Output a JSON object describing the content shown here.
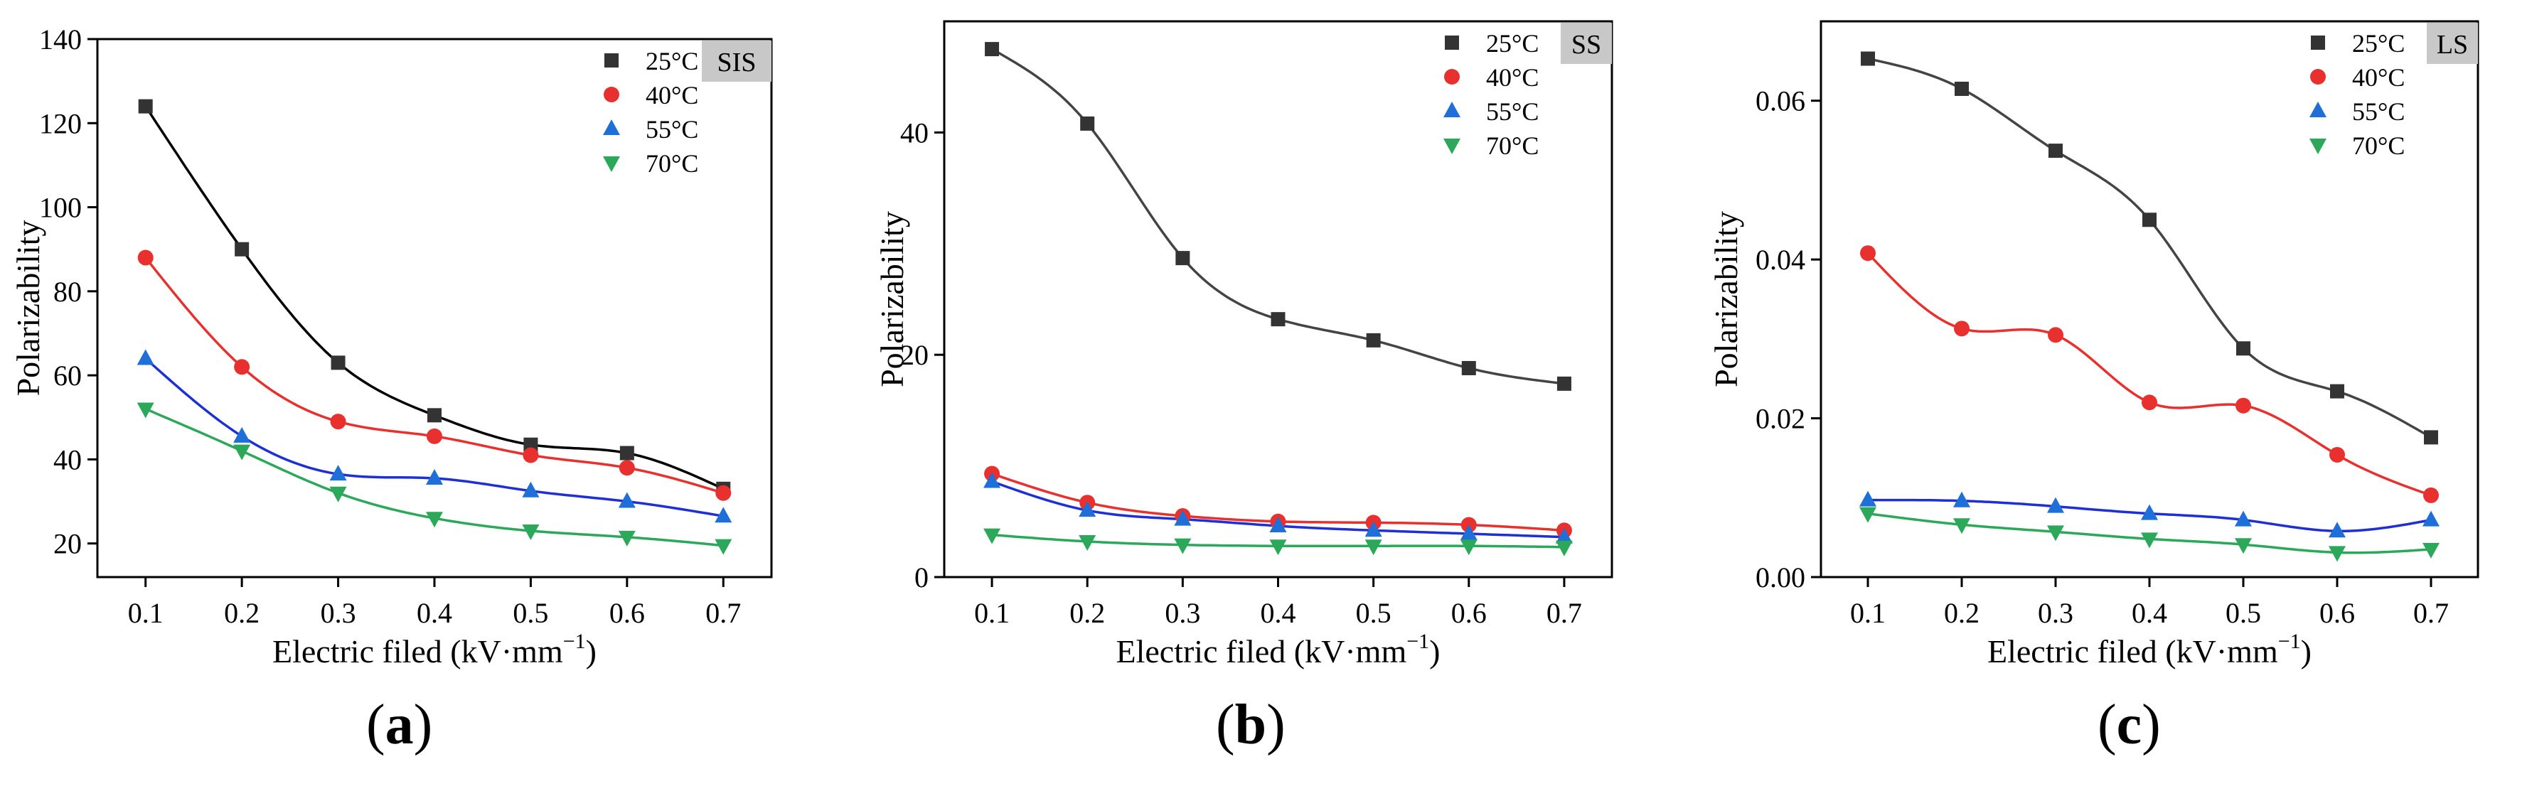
{
  "chart_data": [
    {
      "type": "scatter",
      "panel_label": "a",
      "tag": "SIS",
      "xlabel": "Electric filed (kV·mm",
      "xlabel_sup": "−1",
      "xlabel_close": ")",
      "ylabel": "Polarizability",
      "xlim": [
        0.05,
        0.75
      ],
      "ylim": [
        12,
        140
      ],
      "xticks": [
        0.1,
        0.2,
        0.3,
        0.4,
        0.5,
        0.6,
        0.7
      ],
      "xtick_labels": [
        "0.1",
        "0.2",
        "0.3",
        "0.4",
        "0.5",
        "0.6",
        "0.7"
      ],
      "yticks": [
        20,
        40,
        60,
        80,
        100,
        120,
        140
      ],
      "ytick_labels": [
        "20",
        "40",
        "60",
        "80",
        "100",
        "120",
        "140"
      ],
      "legend_position": "top-right",
      "x": [
        0.1,
        0.2,
        0.3,
        0.4,
        0.5,
        0.6,
        0.7
      ],
      "series": [
        {
          "name": "25°C",
          "color": "#333333",
          "line_color": "#000000",
          "marker": "square",
          "values": [
            124,
            90,
            63,
            50.5,
            43.5,
            41.5,
            33
          ]
        },
        {
          "name": "40°C",
          "color": "#e8312f",
          "line_color": "#e8312f",
          "marker": "circle",
          "values": [
            88,
            62,
            49,
            45.5,
            41,
            38,
            32
          ]
        },
        {
          "name": "55°C",
          "color": "#1f6fd8",
          "line_color": "#1f2fd8",
          "marker": "triangle-up",
          "values": [
            64,
            45.5,
            36.5,
            35.5,
            32.5,
            30,
            26.5
          ]
        },
        {
          "name": "70°C",
          "color": "#2ca85a",
          "line_color": "#2ca85a",
          "marker": "triangle-down",
          "values": [
            52,
            42,
            32,
            26,
            23,
            21.5,
            19.5
          ]
        }
      ]
    },
    {
      "type": "scatter",
      "panel_label": "b",
      "tag": "SS",
      "xlabel": "Electric filed (kV·mm",
      "xlabel_sup": "−1",
      "xlabel_close": ")",
      "ylabel": "Polarizability",
      "xlim": [
        0.05,
        0.75
      ],
      "ylim": [
        0,
        50
      ],
      "xticks": [
        0.1,
        0.2,
        0.3,
        0.4,
        0.5,
        0.6,
        0.7
      ],
      "xtick_labels": [
        "0.1",
        "0.2",
        "0.3",
        "0.4",
        "0.5",
        "0.6",
        "0.7"
      ],
      "yticks": [
        0,
        20,
        40
      ],
      "ytick_labels": [
        "0",
        "20",
        "40"
      ],
      "legend_position": "top-right",
      "x": [
        0.1,
        0.2,
        0.3,
        0.4,
        0.5,
        0.6,
        0.7
      ],
      "series": [
        {
          "name": "25°C",
          "color": "#333333",
          "line_color": "#444444",
          "marker": "square",
          "values": [
            47.5,
            40.8,
            28.7,
            23.2,
            21.3,
            18.8,
            17.4
          ]
        },
        {
          "name": "40°C",
          "color": "#e8312f",
          "line_color": "#e8312f",
          "marker": "circle",
          "values": [
            9.3,
            6.7,
            5.5,
            5.0,
            4.9,
            4.7,
            4.2
          ]
        },
        {
          "name": "55°C",
          "color": "#1f6fd8",
          "line_color": "#1f2fd8",
          "marker": "triangle-up",
          "values": [
            8.6,
            6.0,
            5.2,
            4.6,
            4.2,
            3.9,
            3.6
          ]
        },
        {
          "name": "70°C",
          "color": "#2ca85a",
          "line_color": "#2ca85a",
          "marker": "triangle-down",
          "values": [
            3.8,
            3.2,
            2.9,
            2.8,
            2.8,
            2.8,
            2.7
          ]
        }
      ]
    },
    {
      "type": "scatter",
      "panel_label": "c",
      "tag": "LS",
      "xlabel": "Electric filed (kV·mm",
      "xlabel_sup": "−1",
      "xlabel_close": ")",
      "ylabel": "Polarizability",
      "xlim": [
        0.05,
        0.75
      ],
      "ylim": [
        0,
        0.07
      ],
      "xticks": [
        0.1,
        0.2,
        0.3,
        0.4,
        0.5,
        0.6,
        0.7
      ],
      "xtick_labels": [
        "0.1",
        "0.2",
        "0.3",
        "0.4",
        "0.5",
        "0.6",
        "0.7"
      ],
      "yticks": [
        0,
        0.02,
        0.04,
        0.06
      ],
      "ytick_labels": [
        "0.00",
        "0.02",
        "0.04",
        "0.06"
      ],
      "legend_position": "top-right",
      "x": [
        0.1,
        0.2,
        0.3,
        0.4,
        0.5,
        0.6,
        0.7
      ],
      "series": [
        {
          "name": "25°C",
          "color": "#333333",
          "line_color": "#444444",
          "marker": "square",
          "values": [
            0.0653,
            0.0615,
            0.0537,
            0.045,
            0.0288,
            0.0234,
            0.0176
          ]
        },
        {
          "name": "40°C",
          "color": "#e8312f",
          "line_color": "#e8312f",
          "marker": "circle",
          "values": [
            0.0408,
            0.0313,
            0.0305,
            0.022,
            0.0216,
            0.0154,
            0.0103
          ]
        },
        {
          "name": "55°C",
          "color": "#1f6fd8",
          "line_color": "#1f2fd8",
          "marker": "triangle-up",
          "values": [
            0.0097,
            0.0096,
            0.0089,
            0.008,
            0.0072,
            0.0058,
            0.0072
          ]
        },
        {
          "name": "70°C",
          "color": "#2ca85a",
          "line_color": "#2ca85a",
          "marker": "triangle-down",
          "values": [
            0.008,
            0.0066,
            0.0057,
            0.0048,
            0.0041,
            0.0031,
            0.0035
          ]
        }
      ]
    }
  ]
}
